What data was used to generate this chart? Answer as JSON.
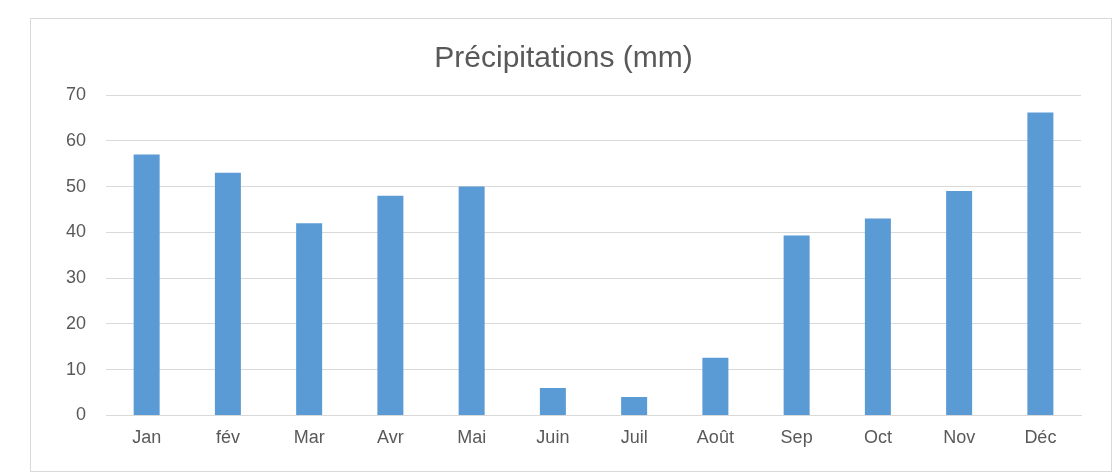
{
  "chart_data": {
    "type": "bar",
    "title": "Précipitations (mm)",
    "categories": [
      "Jan",
      "fév",
      "Mar",
      "Avr",
      "Mai",
      "Juin",
      "Juil",
      "Août",
      "Sep",
      "Oct",
      "Nov",
      "Déc"
    ],
    "values": [
      57,
      53,
      42,
      48,
      50,
      6,
      4,
      12.6,
      39.3,
      43,
      49,
      66.2
    ],
    "color": "#5b9bd5",
    "ylim": [
      0,
      70
    ],
    "yticks": [
      0,
      10,
      20,
      30,
      40,
      50,
      60,
      70
    ],
    "grid": "y"
  }
}
